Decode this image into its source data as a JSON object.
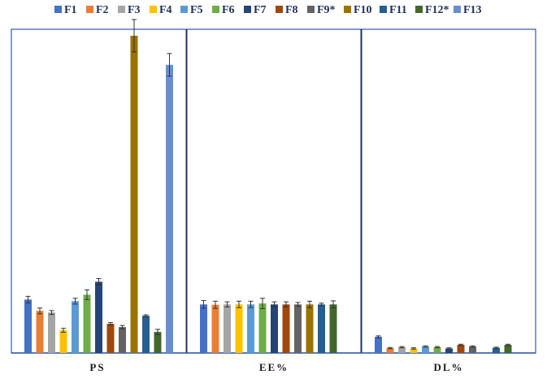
{
  "chart_data": {
    "type": "bar",
    "title": "",
    "xlabel": "",
    "ylabel": "",
    "categories": [
      "PS",
      "EE%",
      "DL%"
    ],
    "ylim": [
      0,
      100
    ],
    "grid": false,
    "legend_position": "top",
    "series": [
      {
        "name": "F1",
        "color": "#4472c4",
        "values": [
          16.5,
          15.0,
          5.0
        ],
        "errors": [
          1.0,
          1.2,
          0.3
        ]
      },
      {
        "name": "F2",
        "color": "#ed7d31",
        "values": [
          13.0,
          14.9,
          1.5
        ],
        "errors": [
          0.9,
          1.1,
          0.2
        ]
      },
      {
        "name": "F3",
        "color": "#a5a5a5",
        "values": [
          12.5,
          15.0,
          1.8
        ],
        "errors": [
          0.6,
          0.8,
          0.2
        ]
      },
      {
        "name": "F4",
        "color": "#ffc000",
        "values": [
          7.0,
          15.0,
          1.4
        ],
        "errors": [
          0.6,
          1.0,
          0.2
        ]
      },
      {
        "name": "F5",
        "color": "#5b9bd5",
        "values": [
          16.0,
          15.0,
          2.0
        ],
        "errors": [
          0.9,
          1.0,
          0.2
        ]
      },
      {
        "name": "F6",
        "color": "#70ad47",
        "values": [
          18.0,
          15.3,
          1.8
        ],
        "errors": [
          1.5,
          1.6,
          0.2
        ]
      },
      {
        "name": "F7",
        "color": "#264478",
        "values": [
          22.0,
          15.0,
          1.4
        ],
        "errors": [
          1.0,
          0.8,
          0.2
        ]
      },
      {
        "name": "F8",
        "color": "#9e480e",
        "values": [
          9.0,
          15.0,
          2.5
        ],
        "errors": [
          0.4,
          0.8,
          0.2
        ]
      },
      {
        "name": "F9*",
        "color": "#636363",
        "values": [
          8.0,
          15.0,
          2.0
        ],
        "errors": [
          0.5,
          0.6,
          0.2
        ]
      },
      {
        "name": "F10",
        "color": "#997300",
        "values": [
          98.0,
          15.0,
          0.0
        ],
        "errors": [
          5.0,
          1.0,
          0.0
        ]
      },
      {
        "name": "F11",
        "color": "#255e91",
        "values": [
          11.5,
          15.0,
          1.6
        ],
        "errors": [
          0.3,
          0.4,
          0.2
        ]
      },
      {
        "name": "F12*",
        "color": "#43682b",
        "values": [
          6.5,
          15.0,
          2.5
        ],
        "errors": [
          0.8,
          1.1,
          0.2
        ]
      },
      {
        "name": "F13",
        "color": "#698ed0",
        "values": [
          89.0,
          0.0,
          0.0
        ],
        "errors": [
          3.5,
          0.0,
          0.0
        ]
      }
    ]
  }
}
